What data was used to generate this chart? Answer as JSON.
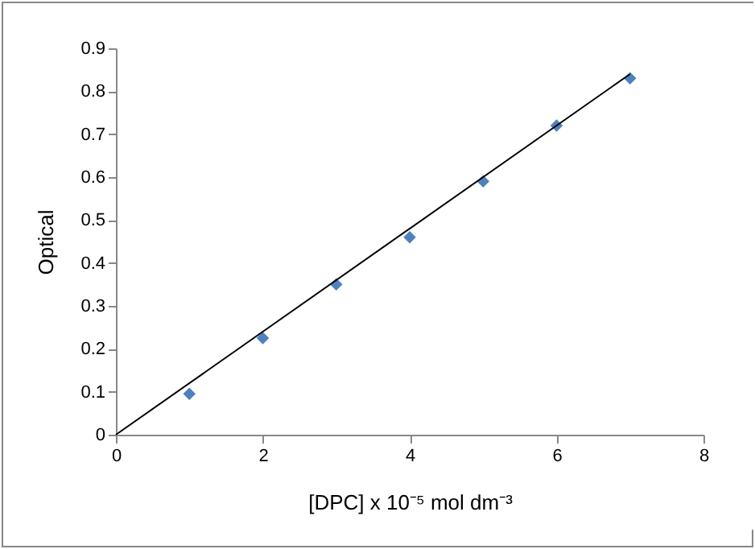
{
  "chart_data": {
    "type": "scatter",
    "xlabel": "[DPC] x 10⁻⁵ mol dm⁻³",
    "ylabel": "Optical",
    "x": [
      1,
      2,
      3,
      4,
      5,
      6,
      7
    ],
    "series": [
      {
        "color": "#4f81bd",
        "marker": "diamond",
        "values": [
          0.095,
          0.225,
          0.35,
          0.46,
          0.59,
          0.72,
          0.83
        ]
      },
      {
        "type": "line",
        "color": "#000000",
        "marker": "none",
        "x": [
          0,
          7
        ],
        "values": [
          0,
          0.84
        ]
      }
    ],
    "xlim": [
      0,
      8
    ],
    "xticks": [
      0,
      2,
      4,
      6,
      8
    ],
    "ylim": [
      0,
      0.9
    ],
    "yticks": [
      0,
      0.1,
      0.2,
      0.3,
      0.4,
      0.5,
      0.6,
      0.7,
      0.8,
      0.9
    ],
    "grid": false
  }
}
